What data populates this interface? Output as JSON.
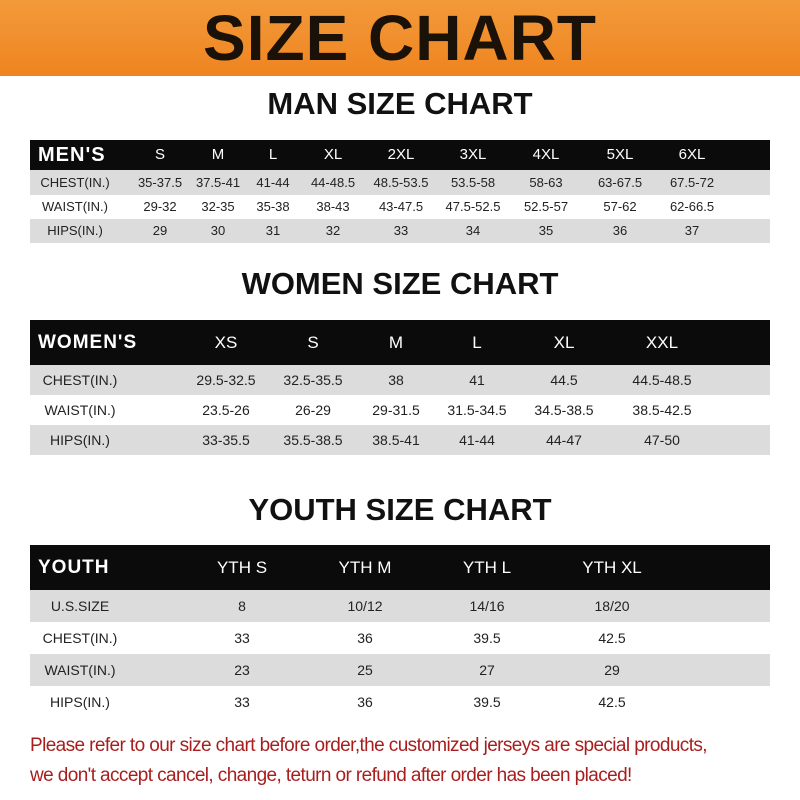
{
  "title": "SIZE CHART",
  "colors": {
    "banner": "#ef8a24",
    "header_row": "#0b0b0b",
    "stripe": "#dcdcdc",
    "note": "#a81e1e"
  },
  "men": {
    "title": "MAN SIZE CHART",
    "header": [
      "MEN'S",
      "S",
      "M",
      "L",
      "XL",
      "2XL",
      "3XL",
      "4XL",
      "5XL",
      "6XL"
    ],
    "rows": [
      [
        "CHEST(IN.)",
        "35-37.5",
        "37.5-41",
        "41-44",
        "44-48.5",
        "48.5-53.5",
        "53.5-58",
        "58-63",
        "63-67.5",
        "67.5-72"
      ],
      [
        "WAIST(IN.)",
        "29-32",
        "32-35",
        "35-38",
        "38-43",
        "43-47.5",
        "47.5-52.5",
        "52.5-57",
        "57-62",
        "62-66.5"
      ],
      [
        "HIPS(IN.)",
        "29",
        "30",
        "31",
        "32",
        "33",
        "34",
        "35",
        "36",
        "37"
      ]
    ]
  },
  "women": {
    "title": "WOMEN SIZE CHART",
    "header": [
      "WOMEN'S",
      "XS",
      "S",
      "M",
      "L",
      "XL",
      "XXL"
    ],
    "rows": [
      [
        "CHEST(IN.)",
        "29.5-32.5",
        "32.5-35.5",
        "38",
        "41",
        "44.5",
        "44.5-48.5"
      ],
      [
        "WAIST(IN.)",
        "23.5-26",
        "26-29",
        "29-31.5",
        "31.5-34.5",
        "34.5-38.5",
        "38.5-42.5"
      ],
      [
        "HIPS(IN.)",
        "33-35.5",
        "35.5-38.5",
        "38.5-41",
        "41-44",
        "44-47",
        "47-50"
      ]
    ]
  },
  "youth": {
    "title": "YOUTH SIZE CHART",
    "header": [
      "YOUTH",
      "YTH S",
      "YTH M",
      "YTH L",
      "YTH XL"
    ],
    "rows": [
      [
        "U.S.SIZE",
        "8",
        "10/12",
        "14/16",
        "18/20"
      ],
      [
        "CHEST(IN.)",
        "33",
        "36",
        "39.5",
        "42.5"
      ],
      [
        "WAIST(IN.)",
        "23",
        "25",
        "27",
        "29"
      ],
      [
        "HIPS(IN.)",
        "33",
        "36",
        "39.5",
        "42.5"
      ]
    ]
  },
  "note": {
    "line1": "Please refer to our size chart before order,the customized jerseys are special products,",
    "line2": "we don't accept cancel, change, teturn or refund after order has been placed!"
  }
}
